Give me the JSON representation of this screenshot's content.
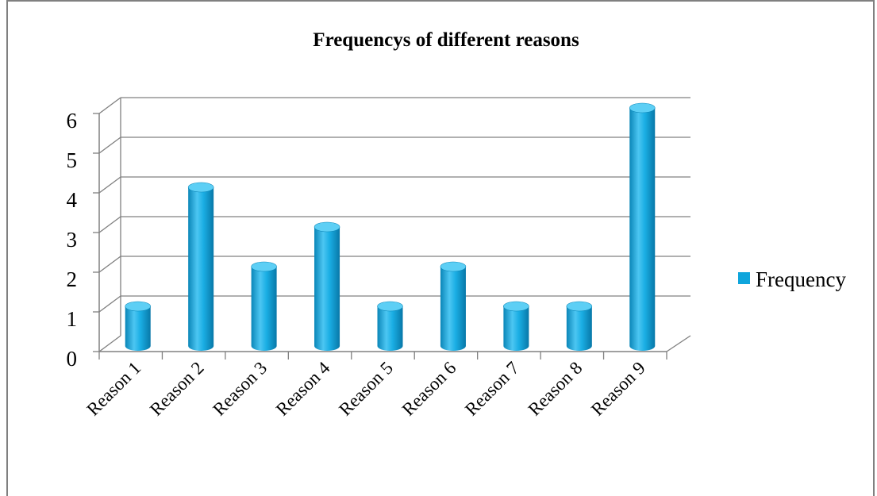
{
  "chart_data": {
    "type": "bar",
    "title": "Frequencys of different reasons",
    "categories": [
      "Reason 1",
      "Reason 2",
      "Reason 3",
      "Reason 4",
      "Reason 5",
      "Reason 6",
      "Reason 7",
      "Reason 8",
      "Reason 9"
    ],
    "series": [
      {
        "name": "Frequency",
        "values": [
          1,
          4,
          2,
          3,
          1,
          2,
          1,
          1,
          6
        ],
        "color": "#0fa5dc"
      }
    ],
    "ylim": [
      0,
      6
    ],
    "yticks": [
      "0",
      "1",
      "2",
      "3",
      "4",
      "5",
      "6"
    ],
    "grid": true,
    "legend": "right",
    "style": "3d-cylinder"
  }
}
